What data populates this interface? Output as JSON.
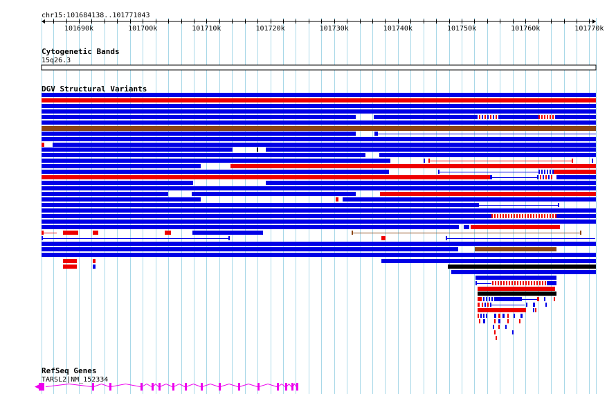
{
  "browser": {
    "location": "chr15:101684138..101771043",
    "region_start": 101684138,
    "region_end": 101771043,
    "tick_step": 10000,
    "ruler_ticks": [
      "101690k",
      "101700k",
      "101710k",
      "101720k",
      "101730k",
      "101740k",
      "101750k",
      "101760k",
      "101770k"
    ],
    "gridline_color": "#a8d8e8"
  },
  "tracks": {
    "cytoband": {
      "title": "Cytogenetic Bands",
      "band": "15q26.3"
    },
    "dgv": {
      "title": "DGV Structural Variants",
      "colors": {
        "loss": "#0000e6",
        "gain": "#ee0000",
        "complex": "#8b4513",
        "inversion": "#000000"
      }
    },
    "refseq": {
      "title": "RefSeq Genes",
      "gene_label": "TARSL2|NM_152334",
      "color": "#ee00ee"
    }
  }
}
